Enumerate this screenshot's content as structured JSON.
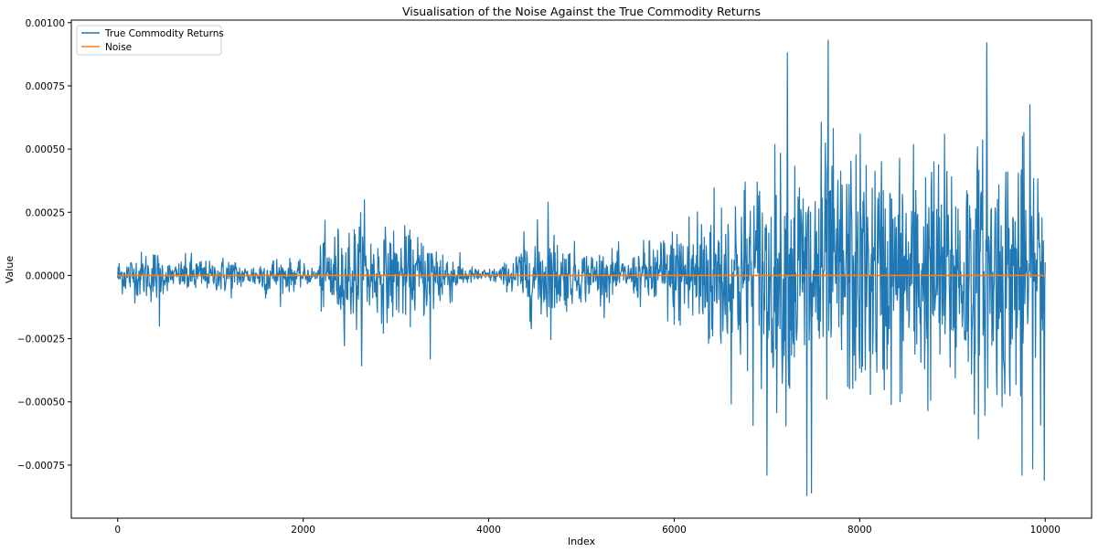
{
  "chart_data": {
    "type": "line",
    "title": "Visualisation of the Noise Against the True Commodity Returns",
    "xlabel": "Index",
    "ylabel": "Value",
    "xlim": [
      -500,
      10500
    ],
    "ylim": [
      -0.00096,
      0.00101
    ],
    "x_ticks": [
      0,
      2000,
      4000,
      6000,
      8000,
      10000
    ],
    "x_tick_labels": [
      "0",
      "2000",
      "4000",
      "6000",
      "8000",
      "10000"
    ],
    "y_ticks": [
      -0.00075,
      -0.0005,
      -0.00025,
      0.0,
      0.00025,
      0.0005,
      0.00075,
      0.001
    ],
    "y_tick_labels": [
      "−0.00075",
      "−0.00050",
      "−0.00025",
      "0.00000",
      "0.00025",
      "0.00050",
      "0.00075",
      "0.00100"
    ],
    "grid": false,
    "legend_position": "top-left",
    "series": [
      {
        "name": "True Commodity Returns",
        "color": "#1f77b4",
        "envelope_x": [
          0,
          200,
          400,
          500,
          600,
          800,
          1000,
          1200,
          1400,
          1600,
          1800,
          2000,
          2150,
          2200,
          2400,
          2600,
          2800,
          3000,
          3200,
          3400,
          3600,
          3700,
          3800,
          4000,
          4200,
          4400,
          4600,
          4800,
          5000,
          5200,
          5400,
          5500,
          5600,
          5800,
          6000,
          6200,
          6400,
          6600,
          6800,
          7000,
          7200,
          7400,
          7600,
          7800,
          8000,
          8200,
          8400,
          8600,
          8800,
          9000,
          9200,
          9400,
          9600,
          9800,
          10000
        ],
        "envelope_amplitude": [
          8e-05,
          0.0001,
          0.00013,
          8e-05,
          5e-05,
          0.0001,
          6e-05,
          0.0001,
          4e-05,
          0.0001,
          8e-05,
          5e-05,
          3e-05,
          0.00018,
          0.00022,
          0.00026,
          0.0002,
          0.00022,
          0.00018,
          0.0002,
          0.00012,
          6e-05,
          4e-05,
          3e-05,
          6e-05,
          0.00018,
          0.00024,
          0.00016,
          0.00012,
          0.00012,
          0.0001,
          6e-05,
          0.00012,
          0.00018,
          0.00022,
          0.00034,
          0.00038,
          0.00042,
          0.00048,
          0.0005,
          0.00054,
          0.00058,
          0.00062,
          0.00056,
          0.0006,
          0.00056,
          0.00054,
          0.00058,
          0.00056,
          0.0006,
          0.00058,
          0.0006,
          0.00058,
          0.00062,
          0.00058
        ],
        "extreme_points": [
          [
            7660,
            0.00093
          ],
          [
            9370,
            0.00092
          ],
          [
            7220,
            0.00088
          ],
          [
            7430,
            -0.00087
          ],
          [
            7480,
            -0.00086
          ],
          [
            7000,
            -0.00079
          ],
          [
            9750,
            -0.00079
          ],
          [
            9990,
            -0.00081
          ],
          [
            3370,
            -0.00033
          ],
          [
            2660,
            0.0003
          ],
          [
            4640,
            0.00029
          ],
          [
            450,
            -0.0002
          ]
        ]
      },
      {
        "name": "Noise",
        "color": "#ff7f0e",
        "x": [
          0,
          10000
        ],
        "y": [
          0.0,
          0.0
        ]
      }
    ]
  }
}
